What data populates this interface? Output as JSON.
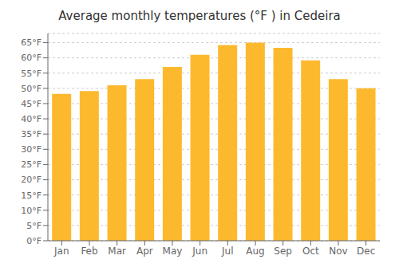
{
  "chart_data": {
    "type": "bar",
    "title": "Average monthly temperatures (°F ) in Cedeira",
    "categories": [
      "Jan",
      "Feb",
      "Mar",
      "Apr",
      "May",
      "Jun",
      "Jul",
      "Aug",
      "Sep",
      "Oct",
      "Nov",
      "Dec"
    ],
    "values": [
      48.2,
      49.1,
      51.0,
      53.0,
      57.0,
      61.0,
      64.2,
      65.0,
      63.3,
      59.2,
      53.0,
      50.0
    ],
    "color": "#FDB92E",
    "ylim": [
      0,
      68
    ],
    "yticks": [
      {
        "value": 0,
        "label": "0°F"
      },
      {
        "value": 5,
        "label": "5°F"
      },
      {
        "value": 10,
        "label": "10°F"
      },
      {
        "value": 15,
        "label": "15°F"
      },
      {
        "value": 20,
        "label": "20°F"
      },
      {
        "value": 25,
        "label": "25°F"
      },
      {
        "value": 30,
        "label": "30°F"
      },
      {
        "value": 35,
        "label": "35°F"
      },
      {
        "value": 40,
        "label": "40°F"
      },
      {
        "value": 45,
        "label": "45°F"
      },
      {
        "value": 50,
        "label": "50°F"
      },
      {
        "value": 55,
        "label": "55°F"
      },
      {
        "value": 60,
        "label": "60°F"
      },
      {
        "value": 65,
        "label": "65°F"
      }
    ],
    "grid": true
  }
}
